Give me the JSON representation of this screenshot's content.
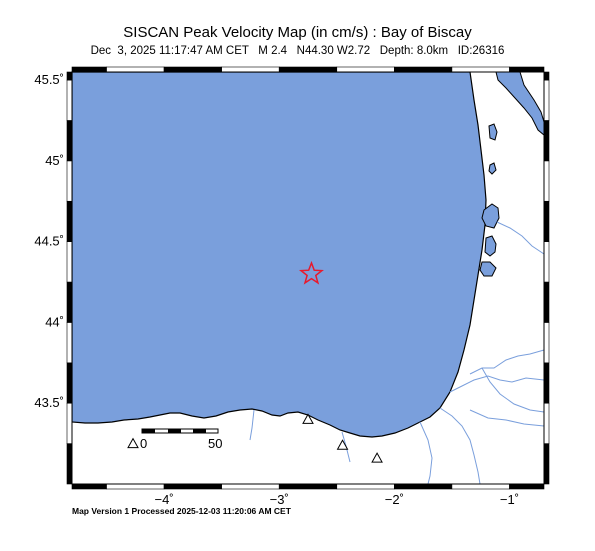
{
  "map": {
    "title": "SISCAN Peak Velocity Map (in cm/s) : Bay of Biscay",
    "subtitle": "Dec  3, 2025 11:17:47 AM CET   M 2.4   N44.30 W2.72   Depth: 8.0km   ID:26316",
    "footer": "Map Version 1 Processed 2025-12-03 11:20:06 AM CET",
    "colors": {
      "sea": "#7a9fdc",
      "land": "#ffffff",
      "river": "#7a9fdc",
      "epicenter": "#e8192c",
      "frame": "#000000"
    },
    "epicenter": {
      "lat": 44.3,
      "lon": -2.72,
      "symbol": "star"
    },
    "extent": {
      "lon": [
        -4.8,
        -0.7
      ],
      "lat": [
        43.0,
        45.55
      ]
    },
    "lat_ticks": [
      {
        "value": 45.5,
        "label": "45.5˚"
      },
      {
        "value": 45.0,
        "label": "45˚"
      },
      {
        "value": 44.5,
        "label": "44.5˚"
      },
      {
        "value": 44.0,
        "label": "44˚"
      },
      {
        "value": 43.5,
        "label": "43.5˚"
      }
    ],
    "lon_ticks": [
      {
        "value": -4,
        "label": "−4˚"
      },
      {
        "value": -3,
        "label": "−3˚"
      },
      {
        "value": -2,
        "label": "−2˚"
      },
      {
        "value": -1,
        "label": "−1˚"
      }
    ],
    "stations": [
      {
        "lat": 43.25,
        "lon": -4.27
      },
      {
        "lat": 43.4,
        "lon": -2.75
      },
      {
        "lat": 43.24,
        "lon": -2.45
      },
      {
        "lat": 43.16,
        "lon": -2.15
      }
    ],
    "scale_bar": {
      "labels": [
        "0",
        "50"
      ],
      "unit_km": 50
    }
  }
}
